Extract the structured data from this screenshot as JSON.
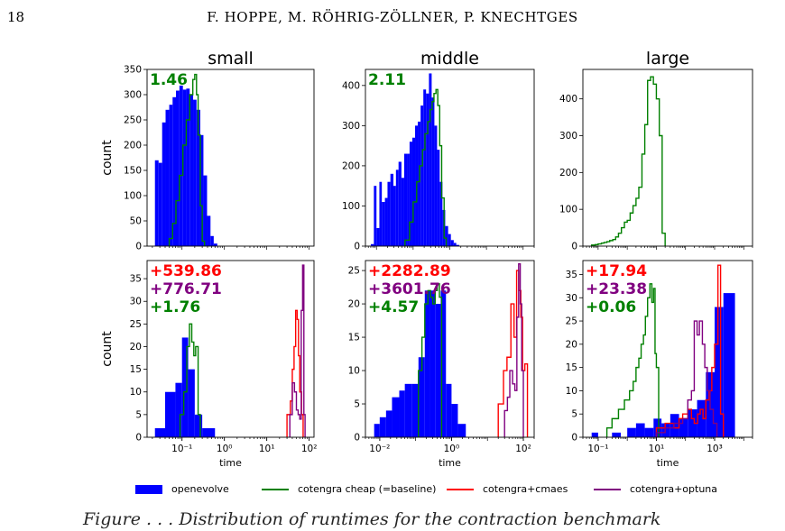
{
  "page": {
    "number": "18",
    "running_head": "F. HOPPE, M. RÖHRIG-ZÖLLNER, P. KNECHTGES",
    "caption_fragment": "Figure . . .   Distribution of runtimes for the contraction benchmark"
  },
  "colors": {
    "openevolve": "#0000ff",
    "cotengra_cheap": "#008000",
    "cotengra_cmaes": "#ff0000",
    "cotengra_optuna": "#800080"
  },
  "legend": [
    {
      "label": "openevolve",
      "series": "openevolve",
      "kind": "patch"
    },
    {
      "label": "cotengra cheap (=baseline)",
      "series": "cotengra_cheap",
      "kind": "line"
    },
    {
      "label": "cotengra+cmaes",
      "series": "cotengra_cmaes",
      "kind": "line"
    },
    {
      "label": "cotengra+optuna",
      "series": "cotengra_optuna",
      "kind": "line"
    }
  ],
  "chart_data": [
    {
      "type": "histogram",
      "panel": "top-small",
      "title": "small",
      "ylabel": "count",
      "xlabel": "",
      "xscale": "log",
      "xlim": [
        0.015,
        130
      ],
      "ylim": [
        0,
        350
      ],
      "yticks": [
        0,
        50,
        100,
        150,
        200,
        250,
        300,
        350
      ],
      "xticks": [],
      "minor_ticks": true,
      "annotations": [
        {
          "text": "1.46",
          "series": "cotengra_cheap"
        }
      ],
      "series": [
        {
          "key": "openevolve",
          "style": "filled",
          "edges": [
            0.023,
            0.028,
            0.034,
            0.041,
            0.05,
            0.06,
            0.072,
            0.087,
            0.105,
            0.126,
            0.152,
            0.183,
            0.22,
            0.27,
            0.32,
            0.39,
            0.47,
            0.56,
            0.68
          ],
          "values": [
            170,
            165,
            245,
            270,
            280,
            295,
            308,
            318,
            310,
            312,
            300,
            290,
            270,
            220,
            140,
            60,
            20,
            5
          ]
        },
        {
          "key": "cotengra_cheap",
          "style": "step",
          "edges": [
            0.05,
            0.06,
            0.072,
            0.087,
            0.105,
            0.126,
            0.152,
            0.18,
            0.2,
            0.22,
            0.24,
            0.27,
            0.3,
            0.34
          ],
          "values": [
            15,
            45,
            90,
            140,
            200,
            250,
            300,
            330,
            340,
            300,
            220,
            80,
            10
          ]
        }
      ]
    },
    {
      "type": "histogram",
      "panel": "top-middle",
      "title": "middle",
      "ylabel": "",
      "xlabel": "",
      "xscale": "log",
      "xlim": [
        0.005,
        200
      ],
      "ylim": [
        0,
        440
      ],
      "yticks": [
        0,
        100,
        200,
        300,
        400
      ],
      "xticks": [],
      "minor_ticks": true,
      "annotations": [
        {
          "text": "2.11",
          "series": "cotengra_cheap"
        }
      ],
      "series": [
        {
          "key": "openevolve",
          "style": "filled",
          "edges": [
            0.007,
            0.0085,
            0.01,
            0.012,
            0.014,
            0.017,
            0.02,
            0.024,
            0.029,
            0.034,
            0.04,
            0.048,
            0.057,
            0.068,
            0.08,
            0.095,
            0.113,
            0.134,
            0.16,
            0.19,
            0.225,
            0.27,
            0.32,
            0.38,
            0.45,
            0.53,
            0.63,
            0.75,
            0.9,
            1.07,
            1.28,
            1.5,
            1.8
          ],
          "values": [
            5,
            150,
            45,
            160,
            110,
            120,
            160,
            180,
            150,
            190,
            210,
            170,
            230,
            230,
            260,
            270,
            300,
            310,
            350,
            390,
            380,
            430,
            370,
            300,
            240,
            160,
            90,
            50,
            30,
            15,
            8,
            3
          ]
        },
        {
          "key": "cotengra_cheap",
          "style": "step",
          "edges": [
            0.06,
            0.08,
            0.1,
            0.125,
            0.15,
            0.18,
            0.21,
            0.25,
            0.29,
            0.33,
            0.37,
            0.42,
            0.47,
            0.53,
            0.6,
            0.7,
            0.8
          ],
          "values": [
            15,
            60,
            110,
            160,
            200,
            240,
            280,
            310,
            340,
            360,
            380,
            390,
            350,
            250,
            120,
            20
          ]
        }
      ]
    },
    {
      "type": "histogram",
      "panel": "top-large",
      "title": "large",
      "ylabel": "",
      "xlabel": "",
      "xscale": "log",
      "xlim": [
        0.03,
        20000
      ],
      "ylim": [
        0,
        480
      ],
      "yticks": [
        0,
        100,
        200,
        300,
        400
      ],
      "xticks": [],
      "minor_ticks": true,
      "annotations": [],
      "series": [
        {
          "key": "cotengra_cheap",
          "style": "step",
          "edges": [
            0.06,
            0.08,
            0.1,
            0.13,
            0.16,
            0.2,
            0.25,
            0.32,
            0.4,
            0.5,
            0.63,
            0.8,
            1,
            1.26,
            1.58,
            2,
            2.5,
            3.2,
            4,
            5,
            6.3,
            7.9,
            10,
            12.6,
            15.8,
            20
          ],
          "values": [
            3,
            4,
            6,
            8,
            10,
            12,
            15,
            18,
            25,
            35,
            50,
            65,
            70,
            90,
            110,
            130,
            160,
            250,
            330,
            450,
            460,
            440,
            400,
            300,
            35
          ]
        }
      ]
    },
    {
      "type": "histogram",
      "panel": "bottom-small",
      "title": "",
      "ylabel": "count",
      "xlabel": "time",
      "xscale": "log",
      "xlim": [
        0.015,
        130
      ],
      "ylim": [
        0,
        39
      ],
      "yticks": [
        0,
        5,
        10,
        15,
        20,
        25,
        30,
        35
      ],
      "xticks": [
        0.1,
        1,
        10,
        100
      ],
      "minor_ticks": true,
      "annotations": [
        {
          "text": "+539.86",
          "series": "cotengra_cmaes"
        },
        {
          "text": "+776.71",
          "series": "cotengra_optuna"
        },
        {
          "text": "+1.76",
          "series": "cotengra_cheap"
        }
      ],
      "series": [
        {
          "key": "openevolve",
          "style": "filled",
          "edges": [
            0.023,
            0.04,
            0.07,
            0.1,
            0.14,
            0.2,
            0.3,
            0.6
          ],
          "values": [
            2,
            10,
            12,
            22,
            15,
            5,
            2
          ]
        },
        {
          "key": "cotengra_cheap",
          "style": "step",
          "edges": [
            0.09,
            0.11,
            0.13,
            0.15,
            0.17,
            0.19,
            0.21,
            0.24,
            0.27
          ],
          "values": [
            5,
            10,
            20,
            25,
            21,
            18,
            20,
            5
          ]
        },
        {
          "key": "cotengra_cmaes",
          "style": "step",
          "edges": [
            30,
            36,
            40,
            44,
            48,
            52,
            56,
            60,
            66,
            72
          ],
          "values": [
            5,
            8,
            15,
            20,
            28,
            26,
            18,
            10,
            5
          ]
        },
        {
          "key": "cotengra_optuna",
          "style": "step",
          "edges": [
            35,
            40,
            45,
            50,
            55,
            60,
            65,
            70,
            75,
            80
          ],
          "values": [
            5,
            12,
            10,
            6,
            5,
            4,
            28,
            38,
            5
          ]
        }
      ]
    },
    {
      "type": "histogram",
      "panel": "bottom-middle",
      "title": "",
      "ylabel": "",
      "xlabel": "time",
      "xscale": "log",
      "xlim": [
        0.004,
        200
      ],
      "ylim": [
        0,
        26.5
      ],
      "yticks": [
        0,
        5,
        10,
        15,
        20,
        25
      ],
      "xticks": [
        0.01,
        1,
        100
      ],
      "minor_ticks": true,
      "annotations": [
        {
          "text": "+2282.89",
          "series": "cotengra_cmaes"
        },
        {
          "text": "+3601.76",
          "series": "cotengra_optuna"
        },
        {
          "text": "+4.57",
          "series": "cotengra_cheap"
        }
      ],
      "series": [
        {
          "key": "openevolve",
          "style": "filled",
          "edges": [
            0.007,
            0.01,
            0.015,
            0.022,
            0.035,
            0.05,
            0.08,
            0.12,
            0.18,
            0.25,
            0.35,
            0.5,
            0.7,
            1,
            1.5,
            2.5
          ],
          "values": [
            2,
            3,
            4,
            6,
            7,
            8,
            8,
            12,
            22,
            22,
            20,
            22,
            8,
            5,
            2
          ]
        },
        {
          "key": "cotengra_cheap",
          "style": "step",
          "edges": [
            0.12,
            0.15,
            0.18,
            0.22,
            0.26,
            0.3,
            0.35,
            0.4,
            0.46,
            0.53
          ],
          "values": [
            10,
            15,
            20,
            22,
            21,
            20,
            22,
            23,
            21
          ]
        },
        {
          "key": "cotengra_cmaes",
          "style": "step",
          "edges": [
            20,
            28,
            35,
            45,
            55,
            65,
            75,
            85,
            95,
            110,
            130
          ],
          "values": [
            5,
            10,
            12,
            20,
            15,
            25,
            22,
            18,
            10,
            11
          ]
        },
        {
          "key": "cotengra_optuna",
          "style": "step",
          "edges": [
            30,
            36,
            42,
            50,
            58,
            66,
            74,
            82,
            90,
            100
          ],
          "values": [
            4,
            6,
            10,
            8,
            7,
            18,
            26,
            20,
            10
          ]
        }
      ]
    },
    {
      "type": "histogram",
      "panel": "bottom-large",
      "title": "",
      "ylabel": "",
      "xlabel": "time",
      "xscale": "log",
      "xlim": [
        0.03,
        20000
      ],
      "ylim": [
        0,
        38
      ],
      "yticks": [
        0,
        5,
        10,
        15,
        20,
        25,
        30,
        35
      ],
      "xticks": [
        0.1,
        10,
        1000
      ],
      "minor_ticks": true,
      "annotations": [
        {
          "text": "+17.94",
          "series": "cotengra_cmaes"
        },
        {
          "text": "+23.38",
          "series": "cotengra_optuna"
        },
        {
          "text": "+0.06",
          "series": "cotengra_cheap"
        }
      ],
      "series": [
        {
          "key": "openevolve",
          "style": "filled",
          "edges": [
            0.06,
            0.1,
            0.3,
            0.6,
            1,
            2,
            4,
            8,
            15,
            30,
            60,
            120,
            250,
            500,
            1000,
            2000,
            5000
          ],
          "values": [
            1,
            0,
            1,
            0,
            2,
            3,
            2,
            4,
            3,
            5,
            4,
            6,
            8,
            14,
            28,
            31
          ]
        },
        {
          "key": "cotengra_cheap",
          "style": "step",
          "edges": [
            0.2,
            0.3,
            0.5,
            0.8,
            1.2,
            1.6,
            2,
            2.5,
            3,
            3.6,
            4.2,
            5,
            6,
            7,
            8,
            9,
            10,
            12
          ],
          "values": [
            2,
            4,
            6,
            8,
            10,
            12,
            15,
            17,
            20,
            22,
            26,
            30,
            33,
            29,
            32,
            18,
            15
          ]
        },
        {
          "key": "cotengra_cmaes",
          "style": "step",
          "edges": [
            10,
            20,
            40,
            60,
            80,
            120,
            160,
            200,
            260,
            320,
            400,
            500,
            650,
            800,
            1000,
            1300,
            1600,
            2000
          ],
          "values": [
            2,
            3,
            2,
            4,
            5,
            6,
            4,
            3,
            5,
            6,
            4,
            8,
            10,
            15,
            20,
            37,
            5
          ]
        },
        {
          "key": "cotengra_optuna",
          "style": "step",
          "edges": [
            10,
            20,
            40,
            80,
            120,
            160,
            200,
            250,
            300,
            380,
            460,
            560,
            700,
            900,
            1200
          ],
          "values": [
            1,
            2,
            3,
            4,
            8,
            10,
            25,
            22,
            25,
            20,
            15,
            10,
            6,
            3
          ]
        }
      ]
    }
  ]
}
